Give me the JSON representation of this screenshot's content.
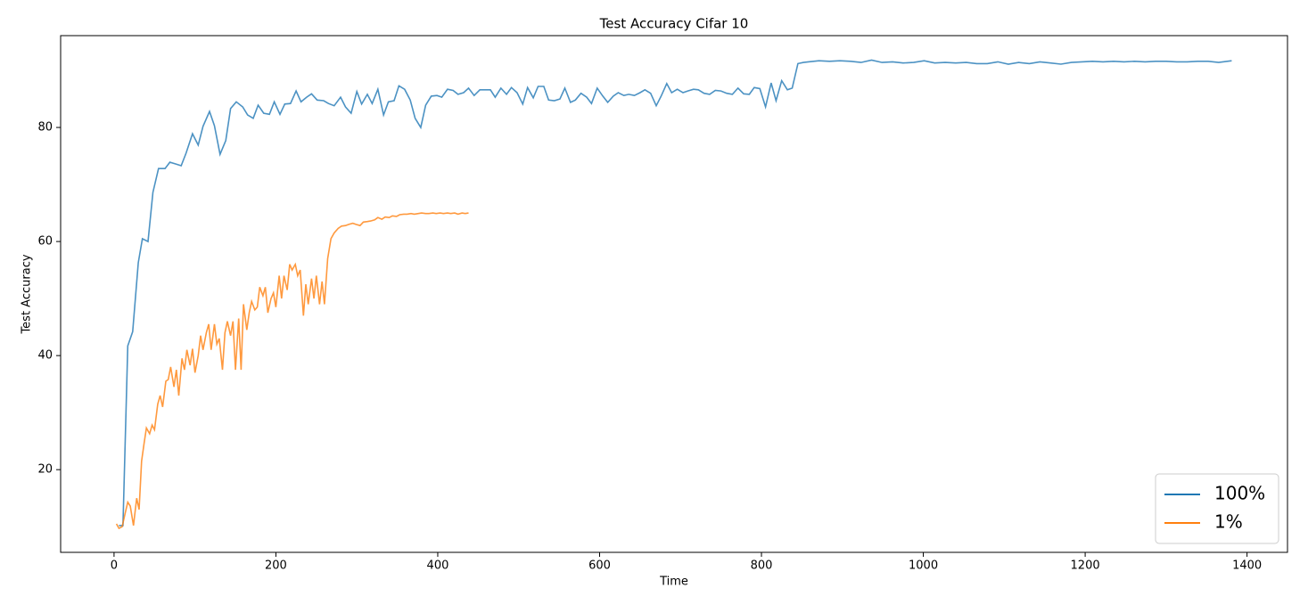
{
  "chart_data": {
    "type": "line",
    "title": "Test Accuracy Cifar 10",
    "xlabel": "Time",
    "ylabel": "Test Accuracy",
    "xlim": [
      -66,
      1450
    ],
    "ylim": [
      5.5,
      96.1
    ],
    "xticks": [
      0,
      200,
      400,
      600,
      800,
      1000,
      1200,
      1400
    ],
    "yticks": [
      20,
      40,
      60,
      80
    ],
    "grid": false,
    "legend": "lower right",
    "series": [
      {
        "name": "100%",
        "color": "#1f77b4",
        "x": [
          6,
          11,
          17,
          23,
          30,
          35,
          42,
          48,
          55,
          63,
          69,
          76,
          83,
          89,
          97,
          104,
          110,
          118,
          124,
          131,
          138,
          144,
          151,
          159,
          165,
          172,
          178,
          185,
          192,
          198,
          205,
          211,
          218,
          225,
          231,
          238,
          244,
          251,
          259,
          265,
          272,
          280,
          286,
          293,
          300,
          306,
          313,
          319,
          326,
          333,
          339,
          346,
          352,
          359,
          366,
          372,
          379,
          385,
          392,
          399,
          405,
          412,
          419,
          425,
          432,
          438,
          445,
          452,
          458,
          465,
          471,
          478,
          485,
          491,
          498,
          505,
          511,
          518,
          524,
          531,
          537,
          544,
          551,
          557,
          564,
          570,
          577,
          584,
          590,
          597,
          604,
          610,
          617,
          623,
          630,
          636,
          643,
          650,
          656,
          663,
          670,
          676,
          683,
          689,
          696,
          703,
          709,
          716,
          722,
          729,
          736,
          743,
          750,
          757,
          764,
          771,
          778,
          785,
          791,
          798,
          805,
          812,
          818,
          825,
          832,
          838,
          845,
          852,
          858,
          871,
          884,
          897,
          910,
          923,
          936,
          949,
          962,
          975,
          988,
          1001,
          1014,
          1027,
          1040,
          1053,
          1066,
          1079,
          1092,
          1105,
          1118,
          1131,
          1144,
          1157,
          1170,
          1183,
          1196,
          1209,
          1222,
          1235,
          1248,
          1261,
          1274,
          1287,
          1300,
          1313,
          1326,
          1339,
          1352,
          1365,
          1381
        ],
        "values": [
          10.2,
          10.2,
          41.7,
          44.2,
          56.3,
          60.5,
          60,
          68.6,
          72.8,
          72.8,
          73.9,
          73.6,
          73.3,
          75.5,
          78.9,
          76.9,
          80.2,
          82.8,
          80.3,
          75.3,
          77.7,
          83.3,
          84.5,
          83.6,
          82.2,
          81.6,
          83.9,
          82.5,
          82.3,
          84.5,
          82.3,
          84.1,
          84.2,
          86.4,
          84.5,
          85.3,
          85.9,
          84.8,
          84.7,
          84.2,
          83.8,
          85.3,
          83.6,
          82.5,
          86.3,
          84.1,
          85.8,
          84.2,
          86.7,
          82.2,
          84.5,
          84.7,
          87.3,
          86.7,
          84.8,
          81.6,
          80,
          83.9,
          85.5,
          85.6,
          85.3,
          86.7,
          86.5,
          85.8,
          86.1,
          86.9,
          85.6,
          86.6,
          86.6,
          86.6,
          85.3,
          86.9,
          85.8,
          87,
          86.1,
          84.1,
          87,
          85.2,
          87.2,
          87.2,
          84.8,
          84.7,
          85,
          86.9,
          84.4,
          84.8,
          86,
          85.3,
          84.2,
          86.9,
          85.5,
          84.4,
          85.5,
          86.1,
          85.6,
          85.8,
          85.6,
          86.1,
          86.6,
          86,
          83.8,
          85.5,
          87.7,
          86.1,
          86.7,
          86.1,
          86.4,
          86.7,
          86.6,
          86,
          85.8,
          86.5,
          86.4,
          86.0,
          85.8,
          86.9,
          85.9,
          85.8,
          87.0,
          86.8,
          83.6,
          87.8,
          84.7,
          88.2,
          86.6,
          86.9,
          91.2,
          91.4,
          91.5,
          91.7,
          91.6,
          91.7,
          91.6,
          91.4,
          91.8,
          91.4,
          91.5,
          91.3,
          91.4,
          91.7,
          91.3,
          91.4,
          91.3,
          91.4,
          91.2,
          91.2,
          91.5,
          91.1,
          91.4,
          91.2,
          91.5,
          91.3,
          91.1,
          91.4,
          91.5,
          91.6,
          91.5,
          91.6,
          91.5,
          91.6,
          91.5,
          91.6,
          91.6,
          91.5,
          91.5,
          91.6,
          91.6,
          91.4,
          91.7
        ]
      },
      {
        "name": "1%",
        "color": "#ff7f0e",
        "x": [
          3,
          6,
          10,
          14,
          17,
          20,
          24,
          28,
          31,
          34,
          37,
          40,
          44,
          47,
          50,
          54,
          57,
          60,
          64,
          67,
          70,
          74,
          77,
          80,
          84,
          87,
          90,
          94,
          97,
          100,
          104,
          107,
          110,
          114,
          117,
          120,
          124,
          127,
          130,
          134,
          137,
          140,
          144,
          147,
          150,
          154,
          157,
          160,
          164,
          167,
          170,
          174,
          177,
          180,
          184,
          187,
          190,
          194,
          197,
          200,
          204,
          207,
          210,
          214,
          217,
          220,
          224,
          227,
          230,
          234,
          237,
          240,
          244,
          247,
          250,
          254,
          257,
          260,
          264,
          268,
          272,
          277,
          281,
          286,
          290,
          295,
          299,
          304,
          308,
          313,
          317,
          322,
          326,
          331,
          335,
          340,
          344,
          349,
          353,
          358,
          362,
          367,
          371,
          376,
          380,
          385,
          389,
          394,
          398,
          403,
          407,
          412,
          416,
          421,
          425,
          430,
          434,
          438
        ],
        "values": [
          10.5,
          9.7,
          10,
          12.5,
          14.3,
          13.6,
          10.2,
          15,
          13,
          21.5,
          24.5,
          27.3,
          26.3,
          27.8,
          27,
          31.5,
          33,
          31,
          35.5,
          35.8,
          38,
          34.5,
          37.5,
          33,
          39.5,
          37.5,
          41,
          38.3,
          41.2,
          37,
          40,
          43.5,
          41,
          44,
          45.5,
          41,
          45.5,
          42,
          43,
          37.5,
          44,
          46,
          43.5,
          46,
          37.5,
          46.5,
          37.5,
          49,
          44.5,
          47.5,
          49.5,
          48,
          48.5,
          52,
          50.5,
          52,
          47.5,
          50,
          51,
          48.5,
          54,
          50,
          54,
          51.5,
          56,
          55,
          56,
          54,
          55,
          47,
          52.5,
          49,
          53.5,
          50,
          54,
          49,
          53,
          49,
          57,
          60.5,
          61.5,
          62.3,
          62.7,
          62.8,
          63,
          63.2,
          63,
          62.8,
          63.4,
          63.5,
          63.6,
          63.8,
          64.2,
          63.9,
          64.3,
          64.2,
          64.5,
          64.4,
          64.7,
          64.8,
          64.8,
          64.9,
          64.8,
          64.9,
          65,
          64.9,
          64.9,
          65,
          64.9,
          65,
          64.9,
          65,
          64.9,
          65,
          64.8,
          65,
          64.9,
          65
        ]
      }
    ]
  }
}
